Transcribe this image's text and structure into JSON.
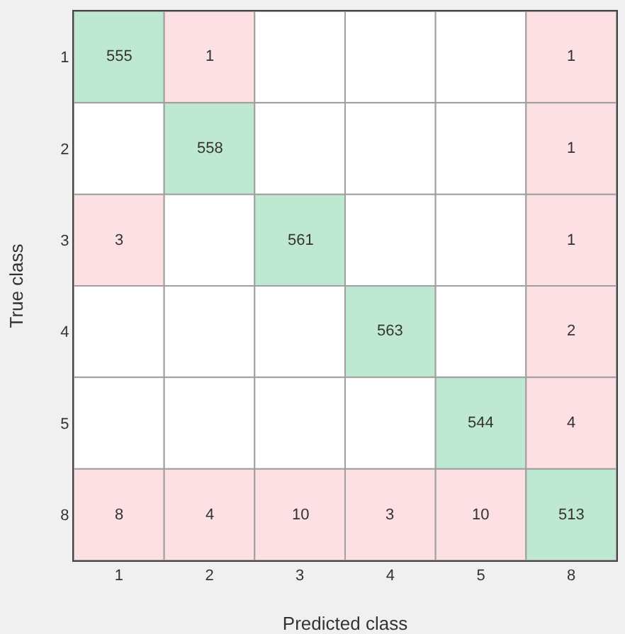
{
  "chart_data": {
    "type": "heatmap",
    "xlabel": "Predicted class",
    "ylabel": "True class",
    "categories": [
      "1",
      "2",
      "3",
      "4",
      "5",
      "8"
    ],
    "y_categories": [
      "1",
      "2",
      "3",
      "4",
      "5",
      "8"
    ],
    "cells": [
      [
        555,
        1,
        null,
        null,
        null,
        1
      ],
      [
        null,
        558,
        null,
        null,
        null,
        1
      ],
      [
        3,
        null,
        561,
        null,
        null,
        1
      ],
      [
        null,
        null,
        null,
        563,
        null,
        2
      ],
      [
        null,
        null,
        null,
        null,
        544,
        4
      ],
      [
        8,
        4,
        10,
        3,
        10,
        513
      ]
    ],
    "colors": [
      [
        "#bfe8d3",
        "#fde0e4",
        null,
        null,
        null,
        "#fde0e4"
      ],
      [
        null,
        "#bfe8d3",
        null,
        null,
        null,
        "#fde0e4"
      ],
      [
        "#fde0e4",
        null,
        "#bfe8d3",
        null,
        null,
        "#fde0e4"
      ],
      [
        null,
        null,
        null,
        "#bfe8d3",
        null,
        "#fde0e4"
      ],
      [
        null,
        null,
        null,
        null,
        "#bfe8d3",
        "#fde0e4"
      ],
      [
        "#fde0e4",
        "#fde0e4",
        "#fde0e4",
        "#fde0e4",
        "#fde0e4",
        "#bfe8d3"
      ]
    ],
    "data_labels": true
  }
}
